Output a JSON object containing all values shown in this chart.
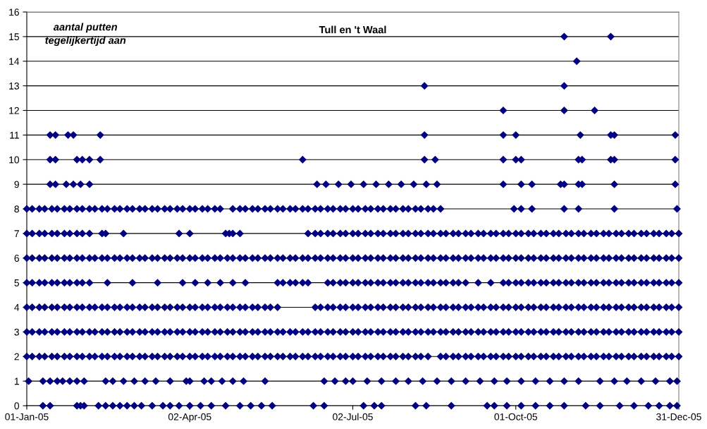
{
  "chart_data": {
    "type": "scatter",
    "title": "Tull en 't Waal",
    "ylabel": "aantal putten\ntegelijkertijd aan",
    "marker": "diamond",
    "grid": "y",
    "xlim": [
      "2005-01-01",
      "2005-12-31"
    ],
    "xticks": [
      {
        "value": "2005-01-01",
        "label": "01-Jan-05"
      },
      {
        "value": "2005-04-02",
        "label": "02-Apr-05"
      },
      {
        "value": "2005-07-02",
        "label": "02-Jul-05"
      },
      {
        "value": "2005-10-01",
        "label": "01-Oct-05"
      },
      {
        "value": "2005-12-31",
        "label": "31-Dec-05"
      }
    ],
    "ylim": [
      0,
      16
    ],
    "yticks": [
      0,
      1,
      2,
      3,
      4,
      5,
      6,
      7,
      8,
      9,
      10,
      11,
      12,
      13,
      14,
      15,
      16
    ],
    "series": [
      {
        "color": "#000080",
        "x": [
          "2005-01-10",
          "2005-01-14",
          "2005-01-29",
          "2005-01-31",
          "2005-02-02",
          "2005-02-10",
          "2005-02-14",
          "2005-02-18",
          "2005-02-22",
          "2005-02-26",
          "2005-03-02",
          "2005-03-06",
          "2005-03-12",
          "2005-03-18",
          "2005-03-22",
          "2005-03-27",
          "2005-04-02",
          "2005-04-08",
          "2005-04-14",
          "2005-04-22",
          "2005-04-30",
          "2005-05-06",
          "2005-05-12",
          "2005-05-18",
          "2005-06-10",
          "2005-06-16",
          "2005-07-08",
          "2005-07-14",
          "2005-07-18",
          "2005-08-06",
          "2005-08-12",
          "2005-08-26",
          "2005-09-15",
          "2005-09-19",
          "2005-09-26",
          "2005-10-04",
          "2005-10-12",
          "2005-10-20",
          "2005-10-28",
          "2005-11-09",
          "2005-11-17",
          "2005-11-28",
          "2005-12-06",
          "2005-12-14",
          "2005-12-20",
          "2005-12-26",
          "2005-12-30"
        ],
        "values": [
          0,
          0,
          0,
          0,
          0,
          0,
          0,
          0,
          0,
          0,
          0,
          0,
          0,
          0,
          0,
          0,
          0,
          0,
          0,
          0,
          0,
          0,
          0,
          0,
          0,
          0,
          0,
          0,
          0,
          0,
          0,
          0,
          0,
          0,
          0,
          0,
          0,
          0,
          0,
          0,
          0,
          0,
          0,
          0,
          0,
          0,
          0
        ]
      },
      {
        "color": "#000080",
        "x": [
          "2005-01-02",
          "2005-01-10",
          "2005-01-14",
          "2005-01-18",
          "2005-01-21",
          "2005-01-25",
          "2005-01-29",
          "2005-02-02",
          "2005-02-14",
          "2005-02-18",
          "2005-02-24",
          "2005-03-02",
          "2005-03-08",
          "2005-03-14",
          "2005-03-22",
          "2005-03-31",
          "2005-04-02",
          "2005-04-10",
          "2005-04-14",
          "2005-04-20",
          "2005-04-26",
          "2005-05-02",
          "2005-05-14",
          "2005-06-16",
          "2005-06-22",
          "2005-06-28",
          "2005-07-02",
          "2005-07-10",
          "2005-07-18",
          "2005-07-26",
          "2005-08-02",
          "2005-08-10",
          "2005-08-18",
          "2005-08-26",
          "2005-09-03",
          "2005-09-11",
          "2005-09-19",
          "2005-09-26",
          "2005-10-04",
          "2005-10-12",
          "2005-10-20",
          "2005-10-28",
          "2005-11-05",
          "2005-11-17",
          "2005-11-25",
          "2005-12-02",
          "2005-12-10",
          "2005-12-18",
          "2005-12-26",
          "2005-12-30"
        ],
        "values": [
          1,
          1,
          1,
          1,
          1,
          1,
          1,
          1,
          1,
          1,
          1,
          1,
          1,
          1,
          1,
          1,
          1,
          1,
          1,
          1,
          1,
          1,
          1,
          1,
          1,
          1,
          1,
          1,
          1,
          1,
          1,
          1,
          1,
          1,
          1,
          1,
          1,
          1,
          1,
          1,
          1,
          1,
          1,
          1,
          1,
          1,
          1,
          1,
          1,
          1
        ]
      },
      {
        "color": "#000080",
        "x": [
          "2005-01-01",
          "2005-01-04",
          "2005-01-08",
          "2005-01-11",
          "2005-01-15",
          "2005-01-18",
          "2005-01-22",
          "2005-01-25",
          "2005-01-29",
          "2005-02-01",
          "2005-02-05",
          "2005-02-08",
          "2005-02-12",
          "2005-02-15",
          "2005-02-19",
          "2005-02-22",
          "2005-02-26",
          "2005-03-01",
          "2005-03-05",
          "2005-03-08",
          "2005-03-12",
          "2005-03-15",
          "2005-03-19",
          "2005-03-22",
          "2005-03-26",
          "2005-03-29",
          "2005-04-02",
          "2005-04-05",
          "2005-04-09",
          "2005-04-12",
          "2005-04-16",
          "2005-04-19",
          "2005-04-23",
          "2005-04-26",
          "2005-04-30",
          "2005-05-03",
          "2005-05-07",
          "2005-05-10",
          "2005-05-14",
          "2005-05-17",
          "2005-05-21",
          "2005-05-24",
          "2005-05-28",
          "2005-05-31",
          "2005-06-04",
          "2005-06-07",
          "2005-06-11",
          "2005-06-14",
          "2005-06-18",
          "2005-06-21",
          "2005-06-25",
          "2005-06-28",
          "2005-07-02",
          "2005-07-05",
          "2005-07-09",
          "2005-07-12",
          "2005-07-16",
          "2005-07-19",
          "2005-07-23",
          "2005-07-26",
          "2005-07-30",
          "2005-08-02",
          "2005-08-06",
          "2005-08-09",
          "2005-08-13",
          "2005-08-20",
          "2005-08-23",
          "2005-08-27",
          "2005-08-30",
          "2005-09-03",
          "2005-09-06",
          "2005-09-10",
          "2005-09-13",
          "2005-09-17",
          "2005-09-20",
          "2005-09-24",
          "2005-09-27",
          "2005-10-01",
          "2005-10-04",
          "2005-10-08",
          "2005-10-11",
          "2005-10-15",
          "2005-10-18",
          "2005-10-22",
          "2005-10-25",
          "2005-10-29",
          "2005-11-01",
          "2005-11-05",
          "2005-11-08",
          "2005-11-12",
          "2005-11-15",
          "2005-11-19",
          "2005-11-22",
          "2005-11-26",
          "2005-11-29",
          "2005-12-03",
          "2005-12-06",
          "2005-12-10",
          "2005-12-13",
          "2005-12-17",
          "2005-12-20",
          "2005-12-24",
          "2005-12-27",
          "2005-12-31"
        ],
        "values": [
          2,
          2,
          2,
          2,
          2,
          2,
          2,
          2,
          2,
          2,
          2,
          2,
          2,
          2,
          2,
          2,
          2,
          2,
          2,
          2,
          2,
          2,
          2,
          2,
          2,
          2,
          2,
          2,
          2,
          2,
          2,
          2,
          2,
          2,
          2,
          2,
          2,
          2,
          2,
          2,
          2,
          2,
          2,
          2,
          2,
          2,
          2,
          2,
          2,
          2,
          2,
          2,
          2,
          2,
          2,
          2,
          2,
          2,
          2,
          2,
          2,
          2,
          2,
          2,
          2,
          2,
          2,
          2,
          2,
          2,
          2,
          2,
          2,
          2,
          2,
          2,
          2,
          2,
          2,
          2,
          2,
          2,
          2,
          2,
          2,
          2,
          2,
          2,
          2,
          2,
          2,
          2,
          2,
          2,
          2,
          2,
          2,
          2,
          2,
          2,
          2,
          2,
          2,
          2
        ]
      },
      {
        "color": "#000080",
        "x": [
          "2005-01-01",
          "2005-01-04",
          "2005-01-08",
          "2005-01-11",
          "2005-01-15",
          "2005-01-18",
          "2005-01-22",
          "2005-01-25",
          "2005-01-29",
          "2005-02-01",
          "2005-02-05",
          "2005-02-08",
          "2005-02-12",
          "2005-02-15",
          "2005-02-19",
          "2005-02-22",
          "2005-02-26",
          "2005-03-01",
          "2005-03-05",
          "2005-03-08",
          "2005-03-12",
          "2005-03-15",
          "2005-03-19",
          "2005-03-22",
          "2005-03-26",
          "2005-03-29",
          "2005-04-02",
          "2005-04-05",
          "2005-04-09",
          "2005-04-12",
          "2005-04-16",
          "2005-04-19",
          "2005-04-23",
          "2005-04-26",
          "2005-04-30",
          "2005-05-03",
          "2005-05-07",
          "2005-05-10",
          "2005-05-14",
          "2005-05-17",
          "2005-05-21",
          "2005-05-24",
          "2005-05-28",
          "2005-05-31",
          "2005-06-04",
          "2005-06-07",
          "2005-06-11",
          "2005-06-14",
          "2005-06-18",
          "2005-06-21",
          "2005-06-25",
          "2005-06-28",
          "2005-07-02",
          "2005-07-05",
          "2005-07-09",
          "2005-07-12",
          "2005-07-16",
          "2005-07-19",
          "2005-07-23",
          "2005-07-26",
          "2005-07-30",
          "2005-08-02",
          "2005-08-06",
          "2005-08-09",
          "2005-08-13",
          "2005-08-16",
          "2005-08-20",
          "2005-08-23",
          "2005-08-27",
          "2005-08-30",
          "2005-09-03",
          "2005-09-06",
          "2005-09-10",
          "2005-09-13",
          "2005-09-17",
          "2005-09-20",
          "2005-09-24",
          "2005-09-27",
          "2005-10-01",
          "2005-10-04",
          "2005-10-08",
          "2005-10-11",
          "2005-10-15",
          "2005-10-18",
          "2005-10-22",
          "2005-10-25",
          "2005-10-29",
          "2005-11-01",
          "2005-11-05",
          "2005-11-08",
          "2005-11-12",
          "2005-11-15",
          "2005-11-19",
          "2005-11-22",
          "2005-11-26",
          "2005-11-29",
          "2005-12-03",
          "2005-12-06",
          "2005-12-10",
          "2005-12-13",
          "2005-12-17",
          "2005-12-20",
          "2005-12-24",
          "2005-12-27",
          "2005-12-31"
        ],
        "values": [
          3,
          3,
          3,
          3,
          3,
          3,
          3,
          3,
          3,
          3,
          3,
          3,
          3,
          3,
          3,
          3,
          3,
          3,
          3,
          3,
          3,
          3,
          3,
          3,
          3,
          3,
          3,
          3,
          3,
          3,
          3,
          3,
          3,
          3,
          3,
          3,
          3,
          3,
          3,
          3,
          3,
          3,
          3,
          3,
          3,
          3,
          3,
          3,
          3,
          3,
          3,
          3,
          3,
          3,
          3,
          3,
          3,
          3,
          3,
          3,
          3,
          3,
          3,
          3,
          3,
          3,
          3,
          3,
          3,
          3,
          3,
          3,
          3,
          3,
          3,
          3,
          3,
          3,
          3,
          3,
          3,
          3,
          3,
          3,
          3,
          3,
          3,
          3,
          3,
          3,
          3,
          3,
          3,
          3,
          3,
          3,
          3,
          3,
          3,
          3,
          3,
          3,
          3,
          3,
          3
        ]
      },
      {
        "color": "#000080",
        "x": [
          "2005-01-01",
          "2005-01-04",
          "2005-01-08",
          "2005-01-11",
          "2005-01-15",
          "2005-01-18",
          "2005-01-22",
          "2005-01-25",
          "2005-01-29",
          "2005-02-01",
          "2005-02-05",
          "2005-02-08",
          "2005-02-12",
          "2005-02-15",
          "2005-02-19",
          "2005-02-22",
          "2005-02-26",
          "2005-03-01",
          "2005-03-05",
          "2005-03-08",
          "2005-03-12",
          "2005-03-15",
          "2005-03-19",
          "2005-03-22",
          "2005-03-26",
          "2005-03-29",
          "2005-04-02",
          "2005-04-05",
          "2005-04-09",
          "2005-04-12",
          "2005-04-16",
          "2005-04-19",
          "2005-04-23",
          "2005-04-26",
          "2005-04-30",
          "2005-05-03",
          "2005-05-07",
          "2005-05-10",
          "2005-05-14",
          "2005-05-17",
          "2005-05-21",
          "2005-06-11",
          "2005-06-14",
          "2005-06-18",
          "2005-06-21",
          "2005-06-25",
          "2005-06-28",
          "2005-07-02",
          "2005-07-05",
          "2005-07-09",
          "2005-07-12",
          "2005-07-16",
          "2005-07-19",
          "2005-07-23",
          "2005-07-26",
          "2005-07-30",
          "2005-08-02",
          "2005-08-06",
          "2005-08-09",
          "2005-08-13",
          "2005-08-16",
          "2005-08-20",
          "2005-08-23",
          "2005-08-27",
          "2005-08-30",
          "2005-09-03",
          "2005-09-06",
          "2005-09-10",
          "2005-09-13",
          "2005-09-17",
          "2005-09-20",
          "2005-09-24",
          "2005-09-27",
          "2005-10-01",
          "2005-10-04",
          "2005-10-08",
          "2005-10-11",
          "2005-10-15",
          "2005-10-18",
          "2005-10-22",
          "2005-10-25",
          "2005-10-29",
          "2005-11-01",
          "2005-11-05",
          "2005-11-08",
          "2005-11-12",
          "2005-11-15",
          "2005-11-19",
          "2005-11-22",
          "2005-11-26",
          "2005-11-29",
          "2005-12-03",
          "2005-12-06",
          "2005-12-10",
          "2005-12-13",
          "2005-12-17",
          "2005-12-20",
          "2005-12-24",
          "2005-12-27",
          "2005-12-31"
        ],
        "values": [
          4,
          4,
          4,
          4,
          4,
          4,
          4,
          4,
          4,
          4,
          4,
          4,
          4,
          4,
          4,
          4,
          4,
          4,
          4,
          4,
          4,
          4,
          4,
          4,
          4,
          4,
          4,
          4,
          4,
          4,
          4,
          4,
          4,
          4,
          4,
          4,
          4,
          4,
          4,
          4,
          4,
          4,
          4,
          4,
          4,
          4,
          4,
          4,
          4,
          4,
          4,
          4,
          4,
          4,
          4,
          4,
          4,
          4,
          4,
          4,
          4,
          4,
          4,
          4,
          4,
          4,
          4,
          4,
          4,
          4,
          4,
          4,
          4,
          4,
          4,
          4,
          4,
          4,
          4,
          4,
          4,
          4,
          4,
          4,
          4,
          4,
          4,
          4,
          4,
          4,
          4,
          4,
          4,
          4,
          4,
          4,
          4,
          4,
          4,
          4
        ]
      },
      {
        "color": "#000080",
        "x": [
          "2005-01-01",
          "2005-01-04",
          "2005-01-08",
          "2005-01-11",
          "2005-01-15",
          "2005-01-18",
          "2005-01-22",
          "2005-01-25",
          "2005-01-29",
          "2005-02-01",
          "2005-02-05",
          "2005-02-15",
          "2005-03-01",
          "2005-03-15",
          "2005-03-29",
          "2005-04-05",
          "2005-04-12",
          "2005-04-19",
          "2005-04-26",
          "2005-05-03",
          "2005-05-21",
          "2005-05-24",
          "2005-05-28",
          "2005-05-31",
          "2005-06-04",
          "2005-06-07",
          "2005-06-18",
          "2005-06-21",
          "2005-06-25",
          "2005-06-28",
          "2005-07-02",
          "2005-07-05",
          "2005-07-09",
          "2005-07-12",
          "2005-07-16",
          "2005-07-19",
          "2005-07-23",
          "2005-07-26",
          "2005-07-30",
          "2005-08-02",
          "2005-08-06",
          "2005-08-09",
          "2005-08-13",
          "2005-08-16",
          "2005-08-20",
          "2005-08-23",
          "2005-08-27",
          "2005-08-30",
          "2005-09-03",
          "2005-09-10",
          "2005-09-17",
          "2005-09-24",
          "2005-09-27",
          "2005-10-01",
          "2005-10-04",
          "2005-10-08",
          "2005-10-11",
          "2005-10-15",
          "2005-10-18",
          "2005-10-22",
          "2005-10-25",
          "2005-10-29",
          "2005-11-01",
          "2005-11-05",
          "2005-11-08",
          "2005-11-12",
          "2005-11-15",
          "2005-11-19",
          "2005-11-22",
          "2005-11-26",
          "2005-11-29",
          "2005-12-03",
          "2005-12-06",
          "2005-12-10",
          "2005-12-13",
          "2005-12-17",
          "2005-12-20",
          "2005-12-24",
          "2005-12-27",
          "2005-12-31"
        ],
        "values": [
          5,
          5,
          5,
          5,
          5,
          5,
          5,
          5,
          5,
          5,
          5,
          5,
          5,
          5,
          5,
          5,
          5,
          5,
          5,
          5,
          5,
          5,
          5,
          5,
          5,
          5,
          5,
          5,
          5,
          5,
          5,
          5,
          5,
          5,
          5,
          5,
          5,
          5,
          5,
          5,
          5,
          5,
          5,
          5,
          5,
          5,
          5,
          5,
          5,
          5,
          5,
          5,
          5,
          5,
          5,
          5,
          5,
          5,
          5,
          5,
          5,
          5,
          5,
          5,
          5,
          5,
          5,
          5,
          5,
          5,
          5,
          5,
          5,
          5,
          5,
          5,
          5,
          5,
          5,
          5
        ]
      },
      {
        "color": "#000080",
        "x": [
          "2005-01-01",
          "2005-01-04",
          "2005-01-08",
          "2005-01-11",
          "2005-01-15",
          "2005-01-18",
          "2005-01-22",
          "2005-01-25",
          "2005-01-29",
          "2005-02-01",
          "2005-02-05",
          "2005-02-08",
          "2005-02-12",
          "2005-02-15",
          "2005-02-19",
          "2005-02-22",
          "2005-02-26",
          "2005-03-01",
          "2005-03-05",
          "2005-03-08",
          "2005-03-12",
          "2005-03-15",
          "2005-03-19",
          "2005-03-22",
          "2005-03-26",
          "2005-03-29",
          "2005-04-02",
          "2005-04-05",
          "2005-04-09",
          "2005-04-12",
          "2005-04-16",
          "2005-04-19",
          "2005-04-23",
          "2005-04-26",
          "2005-04-30",
          "2005-05-03",
          "2005-05-07",
          "2005-05-10",
          "2005-05-14",
          "2005-05-17",
          "2005-05-21",
          "2005-05-24",
          "2005-05-28",
          "2005-05-31",
          "2005-06-04",
          "2005-06-07",
          "2005-06-11",
          "2005-06-14",
          "2005-06-18",
          "2005-06-21",
          "2005-06-25",
          "2005-06-28",
          "2005-07-02",
          "2005-07-05",
          "2005-07-09",
          "2005-07-12",
          "2005-07-16",
          "2005-07-19",
          "2005-07-23",
          "2005-07-26",
          "2005-07-30",
          "2005-08-02",
          "2005-08-06",
          "2005-08-09",
          "2005-08-13",
          "2005-08-16",
          "2005-08-20",
          "2005-08-23",
          "2005-08-27",
          "2005-08-30",
          "2005-09-03",
          "2005-09-06",
          "2005-09-10",
          "2005-09-13",
          "2005-09-17",
          "2005-09-20",
          "2005-09-24",
          "2005-09-27",
          "2005-10-01",
          "2005-10-04",
          "2005-10-08",
          "2005-10-11",
          "2005-10-15",
          "2005-10-18",
          "2005-10-22",
          "2005-10-25",
          "2005-10-29",
          "2005-11-01",
          "2005-11-05",
          "2005-11-08",
          "2005-11-12",
          "2005-11-15",
          "2005-11-19",
          "2005-11-22",
          "2005-11-26",
          "2005-11-29",
          "2005-12-03",
          "2005-12-06",
          "2005-12-10",
          "2005-12-13",
          "2005-12-17",
          "2005-12-20",
          "2005-12-24",
          "2005-12-27",
          "2005-12-31"
        ],
        "values": [
          6,
          6,
          6,
          6,
          6,
          6,
          6,
          6,
          6,
          6,
          6,
          6,
          6,
          6,
          6,
          6,
          6,
          6,
          6,
          6,
          6,
          6,
          6,
          6,
          6,
          6,
          6,
          6,
          6,
          6,
          6,
          6,
          6,
          6,
          6,
          6,
          6,
          6,
          6,
          6,
          6,
          6,
          6,
          6,
          6,
          6,
          6,
          6,
          6,
          6,
          6,
          6,
          6,
          6,
          6,
          6,
          6,
          6,
          6,
          6,
          6,
          6,
          6,
          6,
          6,
          6,
          6,
          6,
          6,
          6,
          6,
          6,
          6,
          6,
          6,
          6,
          6,
          6,
          6,
          6,
          6,
          6,
          6,
          6,
          6,
          6,
          6,
          6,
          6,
          6,
          6,
          6,
          6,
          6,
          6,
          6,
          6,
          6,
          6,
          6,
          6,
          6,
          6,
          6,
          6
        ]
      },
      {
        "color": "#000080",
        "x": [
          "2005-01-01",
          "2005-01-04",
          "2005-01-08",
          "2005-01-11",
          "2005-01-15",
          "2005-01-18",
          "2005-01-22",
          "2005-01-25",
          "2005-01-29",
          "2005-02-01",
          "2005-02-05",
          "2005-02-12",
          "2005-02-14",
          "2005-02-24",
          "2005-03-27",
          "2005-04-02",
          "2005-04-22",
          "2005-04-24",
          "2005-04-26",
          "2005-04-30",
          "2005-06-07",
          "2005-06-11",
          "2005-06-14",
          "2005-06-18",
          "2005-06-21",
          "2005-06-25",
          "2005-06-28",
          "2005-07-02",
          "2005-07-05",
          "2005-07-09",
          "2005-07-12",
          "2005-07-16",
          "2005-07-19",
          "2005-07-23",
          "2005-07-26",
          "2005-07-30",
          "2005-08-02",
          "2005-08-06",
          "2005-08-09",
          "2005-08-13",
          "2005-08-16",
          "2005-08-20",
          "2005-08-23",
          "2005-08-27",
          "2005-08-30",
          "2005-09-03",
          "2005-09-06",
          "2005-09-10",
          "2005-09-13",
          "2005-09-17",
          "2005-09-20",
          "2005-09-24",
          "2005-09-27",
          "2005-10-01",
          "2005-10-04",
          "2005-10-08",
          "2005-10-11",
          "2005-10-15",
          "2005-10-18",
          "2005-10-22",
          "2005-10-25",
          "2005-10-29",
          "2005-11-01",
          "2005-11-05",
          "2005-11-08",
          "2005-11-12",
          "2005-11-15",
          "2005-11-19",
          "2005-11-22",
          "2005-11-26",
          "2005-11-29",
          "2005-12-03",
          "2005-12-06",
          "2005-12-10",
          "2005-12-13",
          "2005-12-17",
          "2005-12-20",
          "2005-12-24",
          "2005-12-27",
          "2005-12-31"
        ],
        "values": [
          7,
          7,
          7,
          7,
          7,
          7,
          7,
          7,
          7,
          7,
          7,
          7,
          7,
          7,
          7,
          7,
          7,
          7,
          7,
          7,
          7,
          7,
          7,
          7,
          7,
          7,
          7,
          7,
          7,
          7,
          7,
          7,
          7,
          7,
          7,
          7,
          7,
          7,
          7,
          7,
          7,
          7,
          7,
          7,
          7,
          7,
          7,
          7,
          7,
          7,
          7,
          7,
          7,
          7,
          7,
          7,
          7,
          7,
          7,
          7,
          7,
          7,
          7,
          7,
          7,
          7,
          7,
          7,
          7,
          7,
          7,
          7,
          7,
          7,
          7,
          7,
          7,
          7,
          7,
          7
        ]
      },
      {
        "color": "#000080",
        "x": [
          "2005-01-01",
          "2005-01-04",
          "2005-01-08",
          "2005-01-11",
          "2005-01-15",
          "2005-01-18",
          "2005-01-22",
          "2005-01-25",
          "2005-01-29",
          "2005-02-01",
          "2005-02-05",
          "2005-02-08",
          "2005-02-12",
          "2005-02-15",
          "2005-02-19",
          "2005-02-22",
          "2005-02-26",
          "2005-03-01",
          "2005-03-05",
          "2005-03-08",
          "2005-03-12",
          "2005-03-15",
          "2005-03-19",
          "2005-03-22",
          "2005-03-26",
          "2005-03-29",
          "2005-04-02",
          "2005-04-05",
          "2005-04-09",
          "2005-04-12",
          "2005-04-16",
          "2005-04-19",
          "2005-04-26",
          "2005-04-30",
          "2005-05-03",
          "2005-05-07",
          "2005-05-10",
          "2005-05-14",
          "2005-05-17",
          "2005-05-21",
          "2005-05-24",
          "2005-05-28",
          "2005-05-31",
          "2005-06-04",
          "2005-06-07",
          "2005-06-11",
          "2005-06-14",
          "2005-06-18",
          "2005-06-21",
          "2005-06-25",
          "2005-06-28",
          "2005-07-02",
          "2005-07-05",
          "2005-07-09",
          "2005-07-12",
          "2005-07-16",
          "2005-07-19",
          "2005-07-23",
          "2005-07-26",
          "2005-07-30",
          "2005-08-02",
          "2005-08-06",
          "2005-08-09",
          "2005-08-13",
          "2005-08-16",
          "2005-08-20",
          "2005-09-30",
          "2005-10-04",
          "2005-10-10",
          "2005-10-28",
          "2005-11-05",
          "2005-11-25",
          "2005-12-30"
        ],
        "values": [
          8,
          8,
          8,
          8,
          8,
          8,
          8,
          8,
          8,
          8,
          8,
          8,
          8,
          8,
          8,
          8,
          8,
          8,
          8,
          8,
          8,
          8,
          8,
          8,
          8,
          8,
          8,
          8,
          8,
          8,
          8,
          8,
          8,
          8,
          8,
          8,
          8,
          8,
          8,
          8,
          8,
          8,
          8,
          8,
          8,
          8,
          8,
          8,
          8,
          8,
          8,
          8,
          8,
          8,
          8,
          8,
          8,
          8,
          8,
          8,
          8,
          8,
          8,
          8,
          8,
          8,
          8,
          8,
          8,
          8,
          8,
          8,
          8
        ]
      },
      {
        "color": "#000080",
        "x": [
          "2005-01-14",
          "2005-01-17",
          "2005-01-23",
          "2005-01-27",
          "2005-01-31",
          "2005-02-05",
          "2005-06-12",
          "2005-06-17",
          "2005-06-24",
          "2005-07-01",
          "2005-07-08",
          "2005-07-15",
          "2005-07-22",
          "2005-07-29",
          "2005-08-05",
          "2005-08-12",
          "2005-08-18",
          "2005-09-24",
          "2005-10-04",
          "2005-10-10",
          "2005-10-26",
          "2005-10-28",
          "2005-11-05",
          "2005-11-07",
          "2005-11-25",
          "2005-12-29"
        ],
        "values": [
          9,
          9,
          9,
          9,
          9,
          9,
          9,
          9,
          9,
          9,
          9,
          9,
          9,
          9,
          9,
          9,
          9,
          9,
          9,
          9,
          9,
          9,
          9,
          9,
          9,
          9
        ]
      },
      {
        "color": "#000080",
        "x": [
          "2005-01-14",
          "2005-01-17",
          "2005-01-29",
          "2005-02-01",
          "2005-02-05",
          "2005-02-11",
          "2005-06-04",
          "2005-08-11",
          "2005-08-17",
          "2005-09-24",
          "2005-10-01",
          "2005-10-04",
          "2005-11-05",
          "2005-11-07",
          "2005-11-23",
          "2005-11-25",
          "2005-12-29"
        ],
        "values": [
          10,
          10,
          10,
          10,
          10,
          10,
          10,
          10,
          10,
          10,
          10,
          10,
          10,
          10,
          10,
          10,
          10
        ]
      },
      {
        "color": "#000080",
        "x": [
          "2005-01-14",
          "2005-01-17",
          "2005-01-24",
          "2005-01-27",
          "2005-02-11",
          "2005-08-11",
          "2005-09-24",
          "2005-10-01",
          "2005-11-06",
          "2005-11-23",
          "2005-11-25",
          "2005-12-29"
        ],
        "values": [
          11,
          11,
          11,
          11,
          11,
          11,
          11,
          11,
          11,
          11,
          11,
          11
        ]
      },
      {
        "color": "#000080",
        "x": [
          "2005-09-24",
          "2005-10-28",
          "2005-11-14"
        ],
        "values": [
          12,
          12,
          12
        ]
      },
      {
        "color": "#000080",
        "x": [
          "2005-08-11",
          "2005-10-28"
        ],
        "values": [
          13,
          13
        ]
      },
      {
        "color": "#000080",
        "x": [
          "2005-11-04"
        ],
        "values": [
          14
        ]
      },
      {
        "color": "#000080",
        "x": [
          "2005-10-28",
          "2005-11-23"
        ],
        "values": [
          15,
          15
        ]
      }
    ]
  }
}
